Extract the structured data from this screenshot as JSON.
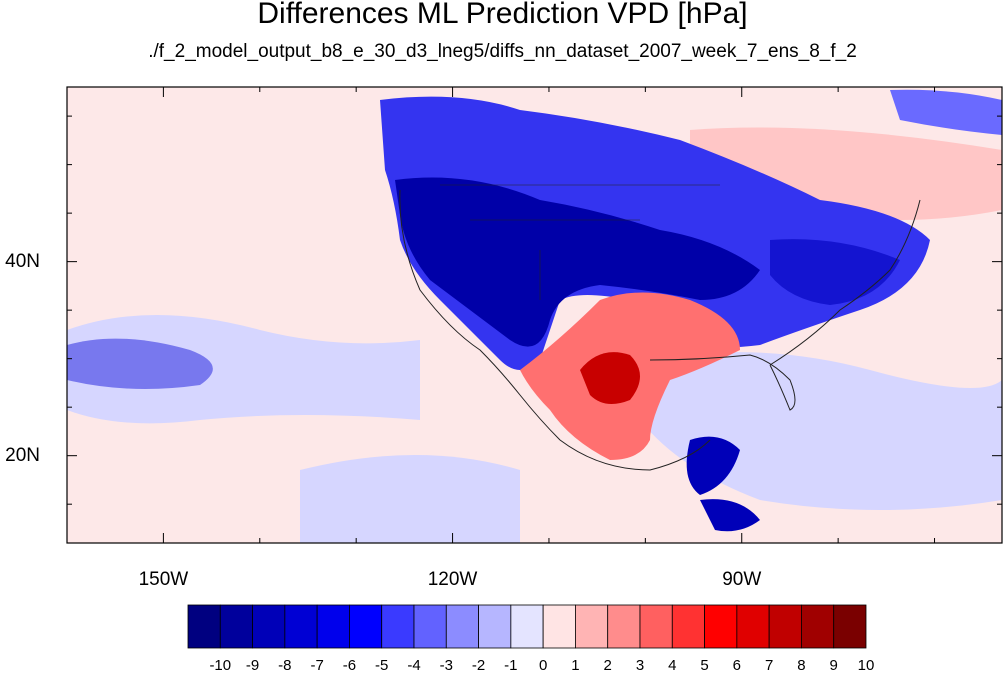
{
  "title": "Differences ML Prediction VPD [hPa]",
  "subtitle": "./f_2_model_output_b8_e_30_d3_lneg5/diffs_nn_dataset_2007_week_7_ens_8_f_2",
  "map": {
    "lon_range": [
      -160,
      -63
    ],
    "lat_range": [
      11,
      58
    ],
    "x_ticks": [
      {
        "value": -150,
        "label": "150W"
      },
      {
        "value": -120,
        "label": "120W"
      },
      {
        "value": -90,
        "label": "90W"
      }
    ],
    "y_ticks": [
      {
        "value": 40,
        "label": "40N"
      },
      {
        "value": 20,
        "label": "20N"
      }
    ]
  },
  "colorbar": {
    "labels": [
      "-10",
      "-9",
      "-8",
      "-7",
      "-6",
      "-5",
      "-4",
      "-3",
      "-2",
      "-1",
      "0",
      "1",
      "2",
      "3",
      "4",
      "5",
      "6",
      "7",
      "8",
      "9",
      "10"
    ],
    "colors": [
      "#000080",
      "#00009c",
      "#0000b8",
      "#0000d4",
      "#0000ec",
      "#0000ff",
      "#3a3aff",
      "#6262ff",
      "#8c8cff",
      "#b6b6ff",
      "#e4e4ff",
      "#ffe4e4",
      "#ffb4b4",
      "#ff8c8c",
      "#ff6060",
      "#ff3232",
      "#ff0000",
      "#e00000",
      "#c00000",
      "#a00000",
      "#7a0000"
    ]
  }
}
